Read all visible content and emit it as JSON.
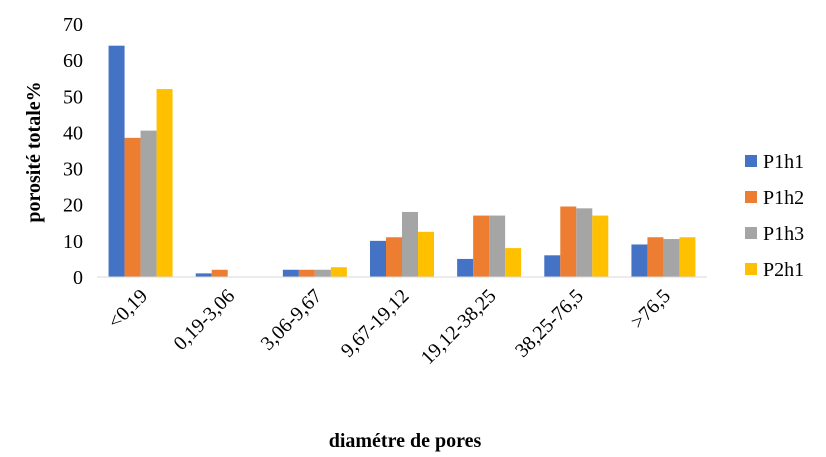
{
  "chart_data": {
    "type": "bar",
    "title": "",
    "xlabel": "diamétre de pores",
    "ylabel": "porosité totale%",
    "ylim": [
      0,
      70
    ],
    "yticks": [
      0,
      10,
      20,
      30,
      40,
      50,
      60,
      70
    ],
    "grid": false,
    "legend_position": "right",
    "categories": [
      "<0,19",
      "0,19-3,06",
      "3,06-9,67",
      "9,67-19,12",
      "19,12-38,25",
      "38,25-76,5",
      ">76,5"
    ],
    "series": [
      {
        "name": "P1h1",
        "color": "#4472C4",
        "values": [
          64,
          1,
          2,
          10,
          5,
          6,
          9
        ]
      },
      {
        "name": "P1h2",
        "color": "#ED7D31",
        "values": [
          38.5,
          2,
          2,
          11,
          17,
          19.5,
          11
        ]
      },
      {
        "name": "P1h3",
        "color": "#A5A5A5",
        "values": [
          40.5,
          0,
          2,
          18,
          17,
          19,
          10.5
        ]
      },
      {
        "name": "P2h1",
        "color": "#FFC000",
        "values": [
          52,
          0,
          2.7,
          12.5,
          8,
          17,
          11
        ]
      }
    ]
  }
}
